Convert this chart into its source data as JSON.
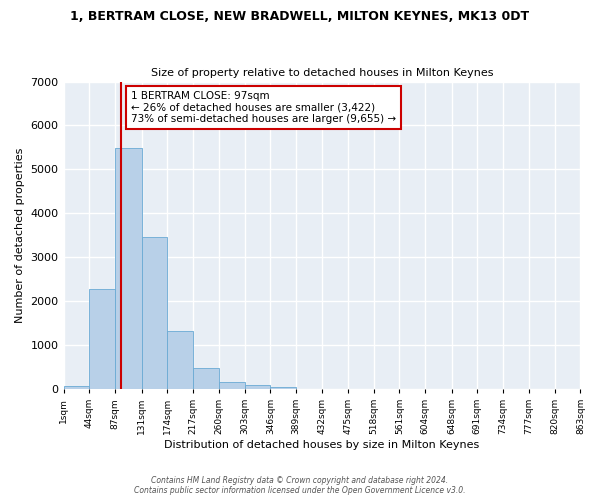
{
  "title": "1, BERTRAM CLOSE, NEW BRADWELL, MILTON KEYNES, MK13 0DT",
  "subtitle": "Size of property relative to detached houses in Milton Keynes",
  "xlabel": "Distribution of detached houses by size in Milton Keynes",
  "ylabel": "Number of detached properties",
  "footer_line1": "Contains HM Land Registry data © Crown copyright and database right 2024.",
  "footer_line2": "Contains public sector information licensed under the Open Government Licence v3.0.",
  "bar_values": [
    75,
    2280,
    5480,
    3450,
    1320,
    470,
    155,
    90,
    55,
    0,
    0,
    0,
    0,
    0,
    0,
    0,
    0,
    0,
    0,
    0
  ],
  "bin_edges": [
    1,
    44,
    87,
    131,
    174,
    217,
    260,
    303,
    346,
    389,
    432,
    475,
    518,
    561,
    604,
    648,
    691,
    734,
    777,
    820,
    863
  ],
  "tick_labels": [
    "1sqm",
    "44sqm",
    "87sqm",
    "131sqm",
    "174sqm",
    "217sqm",
    "260sqm",
    "303sqm",
    "346sqm",
    "389sqm",
    "432sqm",
    "475sqm",
    "518sqm",
    "561sqm",
    "604sqm",
    "648sqm",
    "691sqm",
    "734sqm",
    "777sqm",
    "820sqm",
    "863sqm"
  ],
  "bar_color": "#b8d0e8",
  "bar_edgecolor": "#6aaad4",
  "figure_facecolor": "#ffffff",
  "background_color": "#e8eef5",
  "grid_color": "#ffffff",
  "ylim": [
    0,
    7000
  ],
  "yticks": [
    0,
    1000,
    2000,
    3000,
    4000,
    5000,
    6000,
    7000
  ],
  "property_line_x": 97,
  "property_line_color": "#cc0000",
  "annotation_line1": "1 BERTRAM CLOSE: 97sqm",
  "annotation_line2": "← 26% of detached houses are smaller (3,422)",
  "annotation_line3": "73% of semi-detached houses are larger (9,655) →"
}
